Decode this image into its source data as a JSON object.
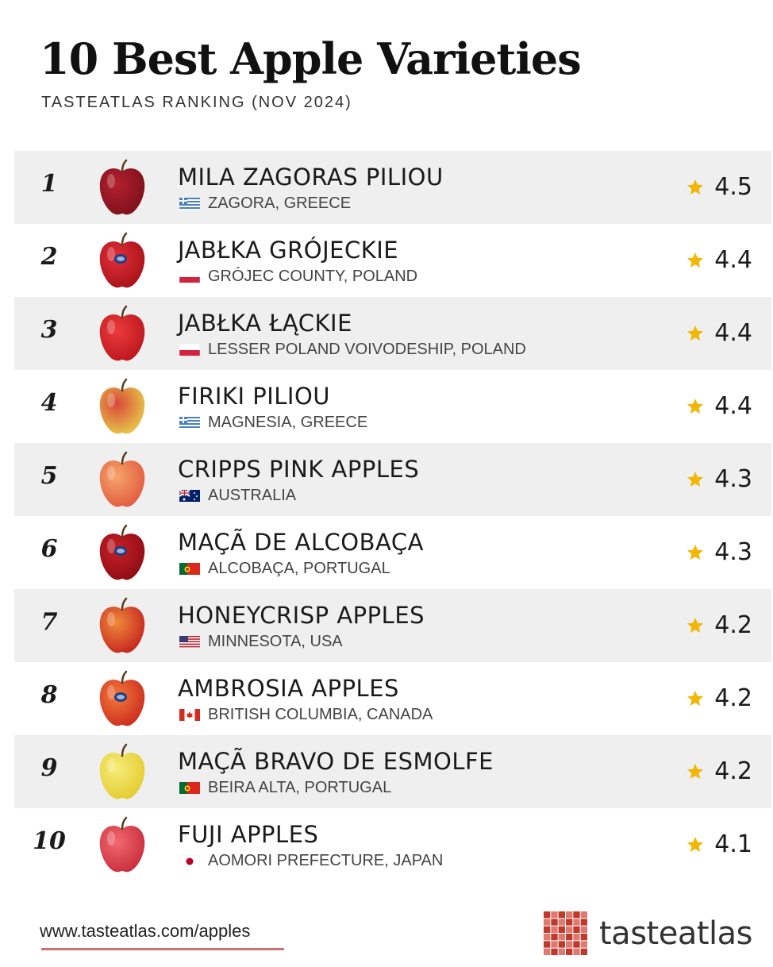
{
  "header": {
    "title": "10 Best Apple Varieties",
    "subtitle": "TASTEATLAS RANKING (NOV 2024)"
  },
  "items": [
    {
      "rank": "1",
      "name": "MILA ZAGORAS PILIOU",
      "origin": "ZAGORA, GREECE",
      "flag": "greece",
      "rating": "4.5",
      "apple": "dark-red"
    },
    {
      "rank": "2",
      "name": "JABŁKA GRÓJECKIE",
      "origin": "GRÓJEC COUNTY, POLAND",
      "flag": "poland",
      "rating": "4.4",
      "apple": "red-sticker"
    },
    {
      "rank": "3",
      "name": "JABŁKA ŁĄCKIE",
      "origin": "LESSER POLAND VOIVODESHIP, POLAND",
      "flag": "poland",
      "rating": "4.4",
      "apple": "red"
    },
    {
      "rank": "4",
      "name": "FIRIKI PILIOU",
      "origin": "MAGNESIA, GREECE",
      "flag": "greece",
      "rating": "4.4",
      "apple": "yellow-red"
    },
    {
      "rank": "5",
      "name": "CRIPPS PINK APPLES",
      "origin": "AUSTRALIA",
      "flag": "australia",
      "rating": "4.3",
      "apple": "pink"
    },
    {
      "rank": "6",
      "name": "MAÇÃ DE ALCOBAÇA",
      "origin": "ALCOBAÇA, PORTUGAL",
      "flag": "portugal",
      "rating": "4.3",
      "apple": "dark-red-sticker"
    },
    {
      "rank": "7",
      "name": "HONEYCRISP APPLES",
      "origin": "MINNESOTA, USA",
      "flag": "usa",
      "rating": "4.2",
      "apple": "red-yellow"
    },
    {
      "rank": "8",
      "name": "AMBROSIA APPLES",
      "origin": "BRITISH COLUMBIA, CANADA",
      "flag": "canada",
      "rating": "4.2",
      "apple": "red-orange-sticker"
    },
    {
      "rank": "9",
      "name": "MAÇÃ BRAVO DE ESMOLFE",
      "origin": "BEIRA ALTA, PORTUGAL",
      "flag": "portugal",
      "rating": "4.2",
      "apple": "yellow"
    },
    {
      "rank": "10",
      "name": "FUJI APPLES",
      "origin": "AOMORI PREFECTURE, JAPAN",
      "flag": "japan",
      "rating": "4.1",
      "apple": "pink-red"
    }
  ],
  "footer": {
    "url": "www.tasteatlas.com/apples",
    "brand": "tasteatlas"
  },
  "colors": {
    "row_shade": "#efefef",
    "star": "#f2b705",
    "brand_red": "#c0392b"
  }
}
